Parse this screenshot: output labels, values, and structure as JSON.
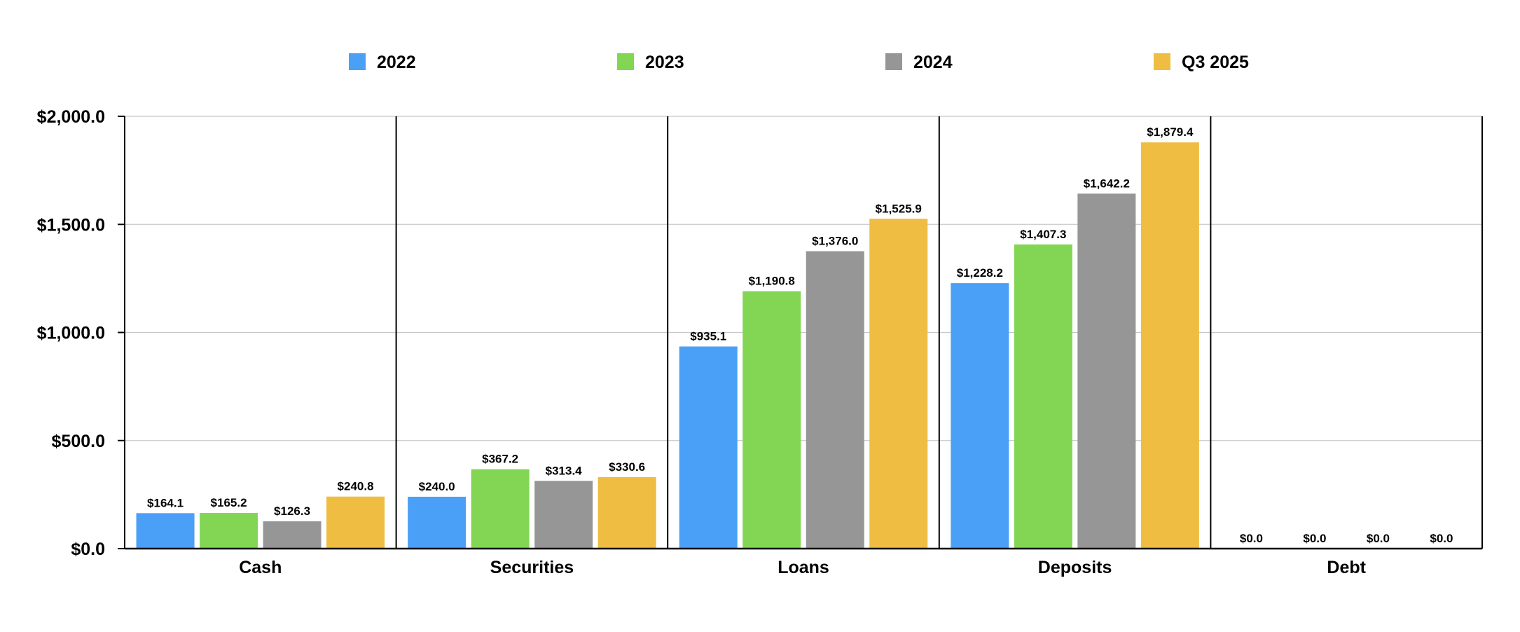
{
  "chart_data": {
    "type": "bar",
    "title": "",
    "xlabel": "",
    "ylabel": "",
    "categories": [
      "Cash",
      "Securities",
      "Loans",
      "Deposits",
      "Debt"
    ],
    "series": [
      {
        "name": "2022",
        "color": "#4aa0f7",
        "values": [
          164.1,
          240.0,
          935.1,
          1228.2,
          0.0
        ],
        "labels": [
          "$164.1",
          "$240.0",
          "$935.1",
          "$1,228.2",
          "$0.0"
        ]
      },
      {
        "name": "2023",
        "color": "#82d653",
        "values": [
          165.2,
          367.2,
          1190.8,
          1407.3,
          0.0
        ],
        "labels": [
          "$165.2",
          "$367.2",
          "$1,190.8",
          "$1,407.3",
          "$0.0"
        ]
      },
      {
        "name": "2024",
        "color": "#969696",
        "values": [
          126.3,
          313.4,
          1376.0,
          1642.2,
          0.0
        ],
        "labels": [
          "$126.3",
          "$313.4",
          "$1,376.0",
          "$1,642.2",
          "$0.0"
        ]
      },
      {
        "name": "Q3 2025",
        "color": "#eebd42",
        "values": [
          240.8,
          330.6,
          1525.9,
          1879.4,
          0.0
        ],
        "labels": [
          "$240.8",
          "$330.6",
          "$1,525.9",
          "$1,879.4",
          "$0.0"
        ]
      }
    ],
    "ylim": [
      0,
      2000
    ],
    "yticks": [
      0,
      500,
      1000,
      1500,
      2000
    ],
    "ytick_labels": [
      "$0.0",
      "$500.0",
      "$1,000.0",
      "$1,500.0",
      "$2,000.0"
    ],
    "grid": true,
    "legend_position": "top"
  }
}
